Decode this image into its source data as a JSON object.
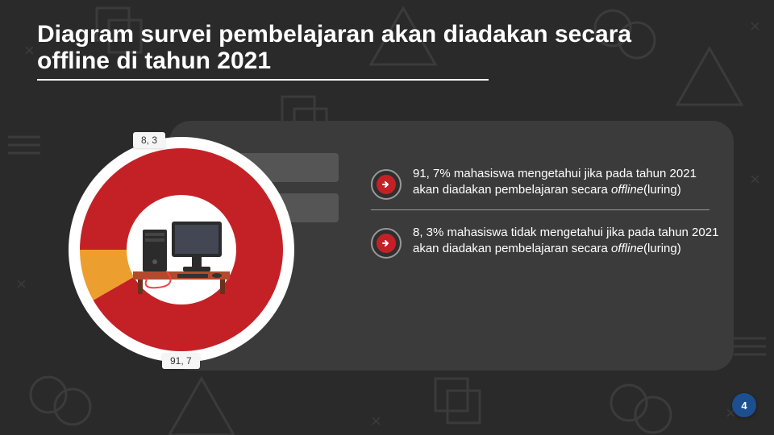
{
  "title": "Diagram survei pembelajaran akan diadakan secara offline di tahun 2021",
  "title_fontsize": 30,
  "title_color": "#ffffff",
  "background_color": "#2a2a2a",
  "panel_bg": "#3b3b3b",
  "chart": {
    "type": "pie",
    "outer_ring_color": "#ffffff",
    "center_bg": "#ffffff",
    "slices": [
      {
        "label": "91, 7",
        "value": 91.7,
        "color": "#c42127"
      },
      {
        "label": "8, 3",
        "value": 8.3,
        "color": "#ec9f2e"
      }
    ],
    "start_angle_deg": -90,
    "label_bg": "#f5f5f5",
    "label_color": "#333333",
    "label_fontsize": 12,
    "center_illustration": {
      "desk_color": "#b34a2d",
      "monitor_color": "#2b2b2b",
      "screen_color": "#424753",
      "tower_color": "#2b2b2b",
      "cable_color": "#e44"
    }
  },
  "bullets": [
    {
      "text_html": "91, 7% mahasiswa mengetahui jika pada tahun 2021 akan diadakan pembelajaran secara <em>offline</em>(luring)"
    },
    {
      "text_html": "8, 3% mahasiswa tidak mengetahui jika pada tahun 2021 akan diadakan pembelajaran secara <em>offline</em>(luring)"
    }
  ],
  "bullet_icon": {
    "ring_color": "#999999",
    "fill_color": "#c42127",
    "arrow_color": "#ffffff"
  },
  "bullet_text_color": "#ffffff",
  "bullet_text_fontsize": 15,
  "separator_color": "#999999",
  "page_number": "4",
  "page_badge_bg": "#1b4f8f",
  "page_badge_color": "#ffffff"
}
